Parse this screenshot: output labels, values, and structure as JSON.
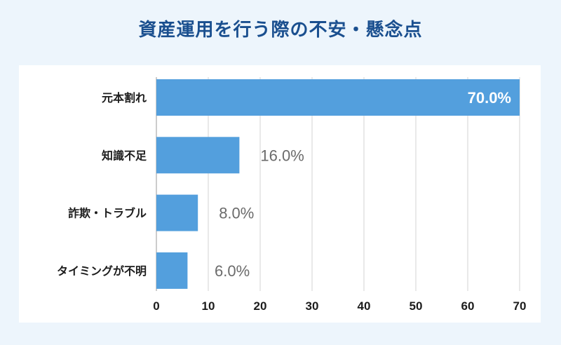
{
  "chart_data": {
    "type": "bar",
    "orientation": "horizontal",
    "title": "資産運用を行う際の不安・懸念点",
    "categories": [
      "元本割れ",
      "知識不足",
      "詐欺・トラブル",
      "タイミングが不明"
    ],
    "values": [
      70.0,
      16.0,
      8.0,
      6.0
    ],
    "value_labels": [
      "70.0%",
      "16.0%",
      "8.0%",
      "6.0%"
    ],
    "xlim": [
      0,
      70
    ],
    "xticks": [
      "0",
      "10",
      "20",
      "30",
      "40",
      "50",
      "60",
      "70"
    ],
    "grid": true,
    "bar_color": "#539fdd"
  }
}
